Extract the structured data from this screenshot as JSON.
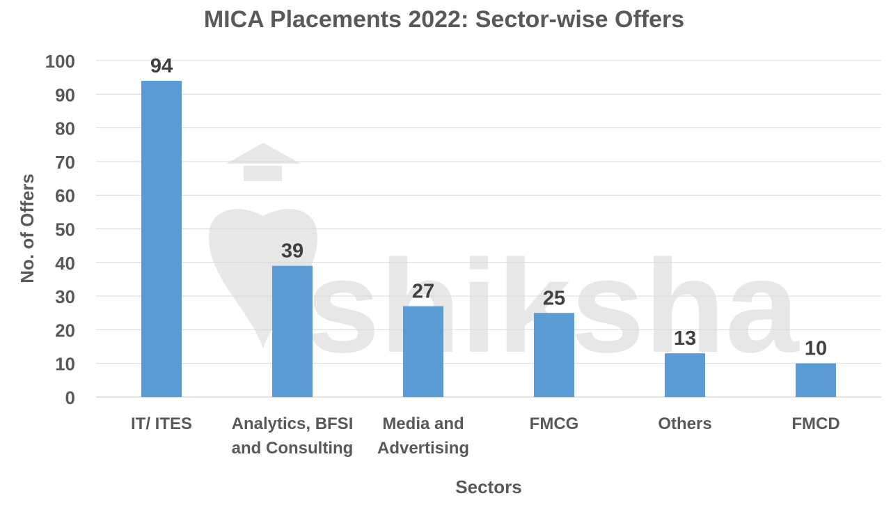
{
  "chart_data": {
    "type": "bar",
    "title": "MICA Placements 2022: Sector-wise Offers",
    "xlabel": "Sectors",
    "ylabel": "No. of Offers",
    "categories": [
      [
        "IT/ ITES"
      ],
      [
        "Analytics, BFSI",
        "and Consulting"
      ],
      [
        "Media and",
        "Advertising"
      ],
      [
        "FMCG"
      ],
      [
        "Others"
      ],
      [
        "FMCD"
      ]
    ],
    "values": [
      94,
      39,
      27,
      25,
      13,
      10
    ],
    "ylim": [
      0,
      100
    ],
    "yticks": [
      0,
      10,
      20,
      30,
      40,
      50,
      60,
      70,
      80,
      90,
      100
    ],
    "grid": true,
    "legend": "none",
    "bar_color": "#5B9BD5",
    "watermark": "shiksha"
  }
}
